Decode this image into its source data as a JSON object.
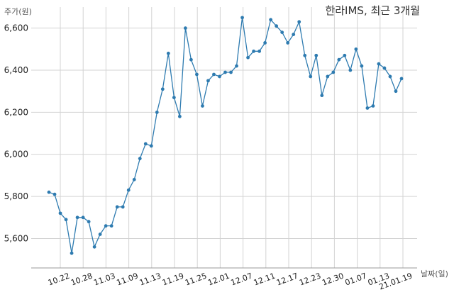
{
  "chart_data": {
    "type": "line",
    "title": "한라IMS, 최근 3개월",
    "xlabel": "날짜(일)",
    "ylabel": "주가(원)",
    "ylim": [
      5460,
      6700
    ],
    "yticks": [
      "5,600",
      "5,800",
      "6,000",
      "6,200",
      "6,400",
      "6,600"
    ],
    "xticks": [
      "10.22",
      "10.28",
      "11.03",
      "11.09",
      "11.13",
      "11.19",
      "11.25",
      "12.01",
      "12.07",
      "12.11",
      "12.17",
      "12.23",
      "12.30",
      "01.07",
      "01.13",
      "21.01.19"
    ],
    "grid": true,
    "line_color": "#2e7bb0",
    "series": [
      {
        "values": [
          5820,
          5810,
          5720,
          5690,
          5530,
          5700,
          5700,
          5680,
          5560,
          5620,
          5660,
          5660,
          5750,
          5750,
          5830,
          5880,
          5980,
          6050,
          6040,
          6200,
          6310,
          6480,
          6270,
          6180,
          6600,
          6450,
          6380,
          6230,
          6350,
          6380,
          6370,
          6390,
          6390,
          6420,
          6650,
          6460,
          6490,
          6490,
          6530,
          6640,
          6610,
          6580,
          6530,
          6570,
          6630,
          6470,
          6370,
          6470,
          6280,
          6370,
          6390,
          6450,
          6470,
          6400,
          6500,
          6420,
          6220,
          6230,
          6430,
          6410,
          6370,
          6300,
          6360
        ]
      }
    ]
  }
}
